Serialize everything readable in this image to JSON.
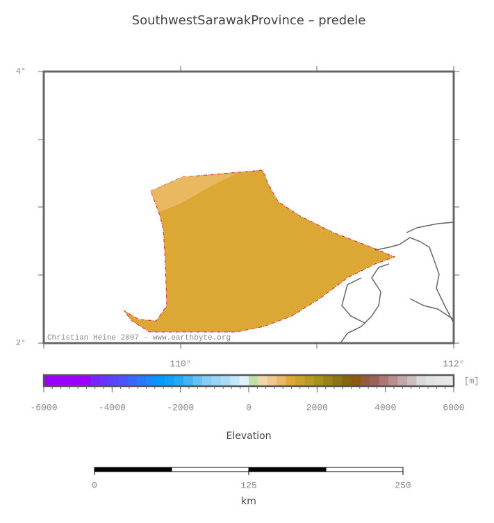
{
  "title": "SouthwestSarawakProvince – predele",
  "map": {
    "lat_labels": [
      "4°",
      "2°"
    ],
    "lon_labels": [
      "110°",
      "112°"
    ],
    "credit": "Christian Heine 2007 - www.earthbyte.org"
  },
  "colorbar": {
    "range": [
      -6000,
      6000
    ],
    "ticks": [
      -6000,
      -4000,
      -2000,
      0,
      2000,
      4000,
      6000
    ],
    "unit": "[m]",
    "label": "Elevation",
    "colors": [
      "#9900ff",
      "#9900ff",
      "#9900ff",
      "#9900ff",
      "#9900ff",
      "#7a22ff",
      "#6a33ff",
      "#5a44ff",
      "#4a55ff",
      "#3a66ff",
      "#2a77ff",
      "#1a88ff",
      "#0099ff",
      "#11a0f8",
      "#22aaf4",
      "#44b4f0",
      "#66c0f0",
      "#88ccf4",
      "#99d4f6",
      "#aadcf8",
      "#c4e8f8",
      "#dff2fb",
      "#bfe3a6",
      "#f3d7ab",
      "#f0c890",
      "#ebb868",
      "#dfa63a",
      "#c9a22a",
      "#b89a25",
      "#a88f20",
      "#9a8219",
      "#8e7412",
      "#86650c",
      "#8a5a10",
      "#955a3a",
      "#a0605a",
      "#ad7777",
      "#b88f8f",
      "#c4a7a7",
      "#cfbcbc",
      "#dadada",
      "#e3e3e3",
      "#e6e6e6",
      "#e8e8e8"
    ]
  },
  "scalebar": {
    "range": [
      0,
      250
    ],
    "ticks": [
      0,
      125,
      250
    ],
    "unit": "km"
  }
}
